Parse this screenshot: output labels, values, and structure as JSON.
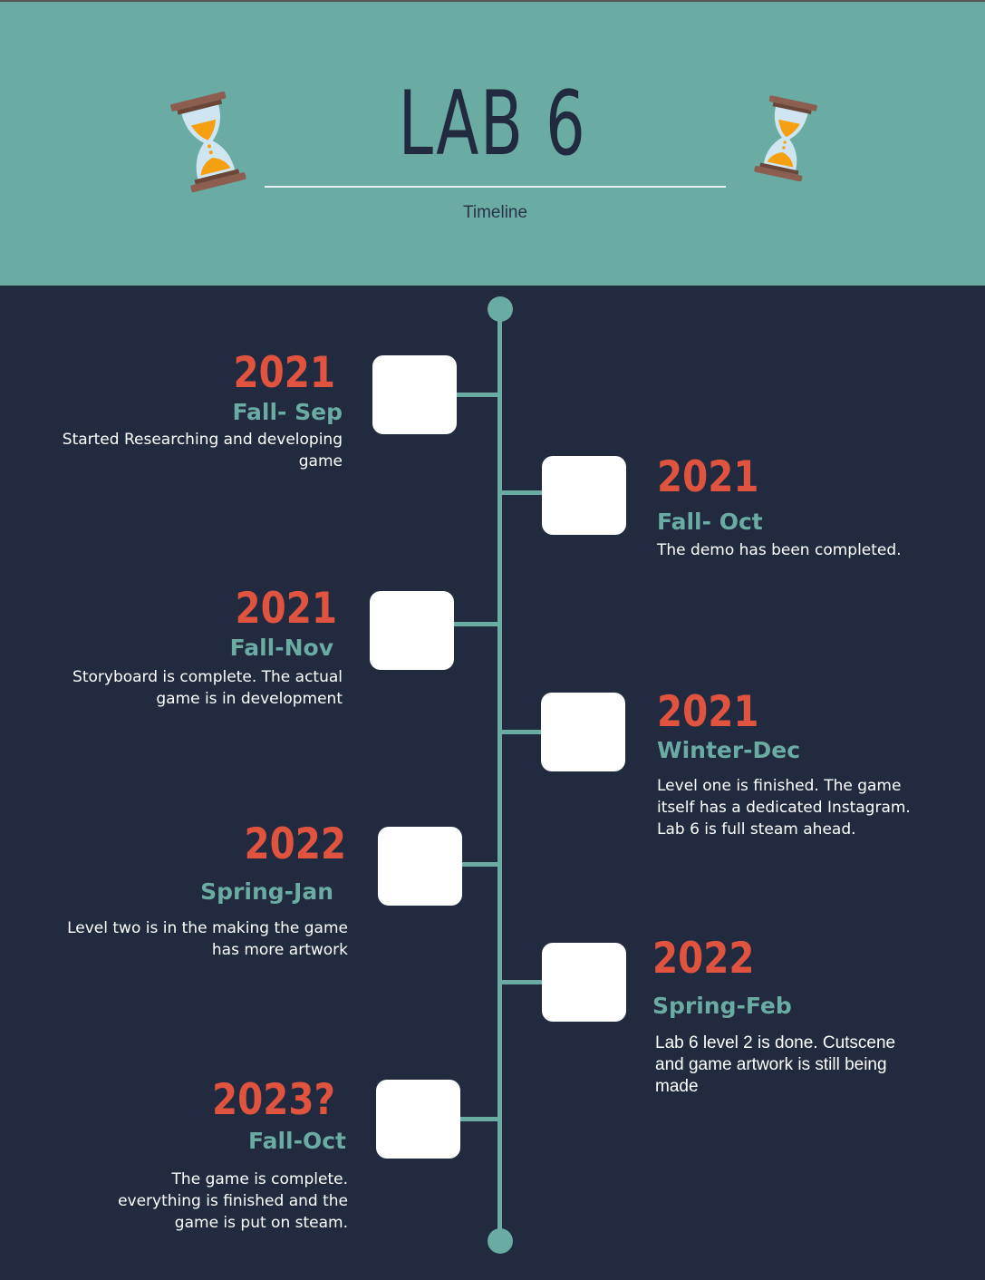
{
  "header": {
    "title": "LAB 6",
    "subtitle": "Timeline",
    "left_icon": "hourglass-icon",
    "right_icon": "hourglass-icon"
  },
  "colors": {
    "header_bg": "#6aaba3",
    "body_bg": "#212a3e",
    "year": "#e0533f",
    "season": "#6aaba3",
    "box": "#ffffff"
  },
  "timeline": [
    {
      "year": "2021",
      "season": "Fall- Sep",
      "description": "Started Researching and developing game"
    },
    {
      "year": "2021",
      "season": "Fall- Oct",
      "description": "The demo has been completed."
    },
    {
      "year": "2021",
      "season": "Fall-Nov",
      "description": "Storyboard is complete. The actual game is in development"
    },
    {
      "year": "2021",
      "season": "Winter-Dec",
      "description": "Level one is finished. The game itself has a dedicated Instagram. Lab 6 is full steam ahead."
    },
    {
      "year": "2022",
      "season": "Spring-Jan",
      "description": "Level two is in the making the game has more artwork"
    },
    {
      "year": "2022",
      "season": "Spring-Feb",
      "description": "Lab 6 level 2 is done. Cutscene and game artwork is still being made"
    },
    {
      "year": "2023?",
      "season": "Fall-Oct",
      "description": "The game is complete. everything is finished and the game is put on steam."
    }
  ]
}
